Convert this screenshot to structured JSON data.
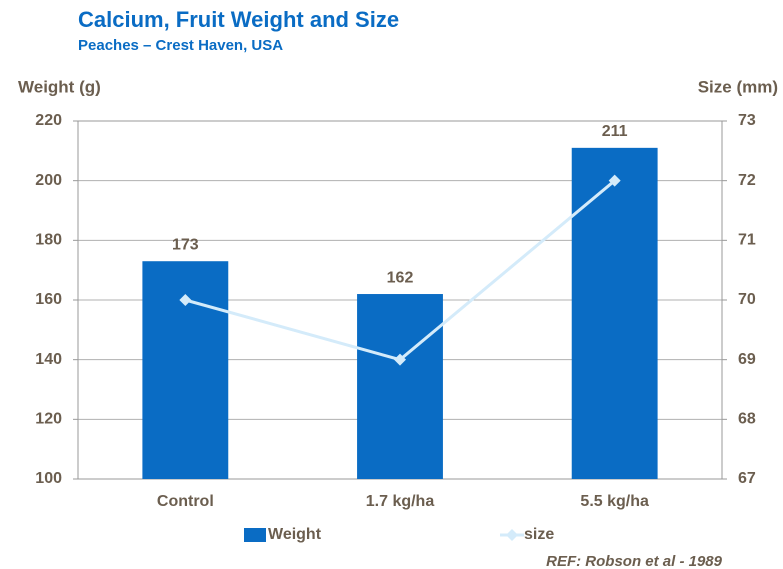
{
  "chart_data": {
    "type": "bar_line",
    "title": "Calcium, Fruit Weight and Size",
    "subtitle": "Peaches – Crest Haven, USA",
    "y_label": "Weight (g)",
    "y2_label": "Size (mm)",
    "categories": [
      "Control",
      "1.7 kg/ha",
      "5.5 kg/ha"
    ],
    "series": [
      {
        "name": "Weight",
        "type": "bar",
        "color": "#0a6cc4",
        "values": [
          173,
          162,
          211
        ],
        "show_value_labels": true
      },
      {
        "name": "size",
        "type": "line",
        "axis": "y2",
        "color": "#d4ebfa",
        "values": [
          70,
          69,
          72
        ]
      }
    ],
    "ylim": [
      100,
      220
    ],
    "yticks": [
      100,
      120,
      140,
      160,
      180,
      200,
      220
    ],
    "y2lim": [
      67,
      73
    ],
    "y2ticks": [
      67,
      68,
      69,
      70,
      71,
      72,
      73
    ],
    "grid": true,
    "legend": "bottom",
    "note": "REF:  Robson et al - 1989"
  }
}
